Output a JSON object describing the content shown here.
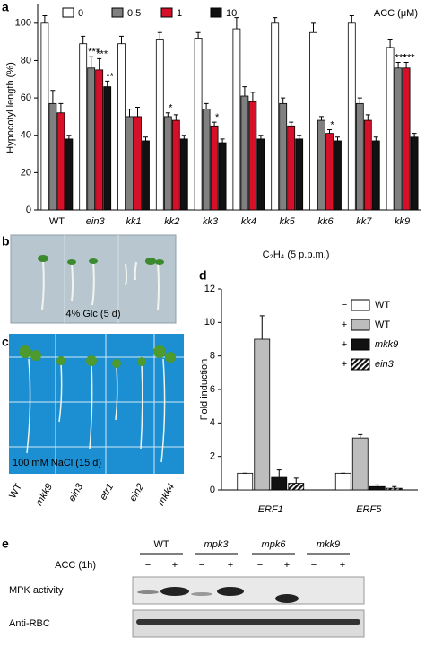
{
  "chart_data": [
    {
      "type": "bar",
      "panel": "a",
      "ylabel": "Hypocotyl length (%)",
      "legend_title": "ACC (μM)",
      "categories": [
        "WT",
        "ein3",
        "kk1",
        "kk2",
        "kk3",
        "kk4",
        "kk5",
        "kk6",
        "kk7",
        "kk9"
      ],
      "series": [
        {
          "name": "0",
          "color": "#ffffff",
          "values": [
            100,
            89,
            89,
            91,
            92,
            97,
            100,
            95,
            100,
            87
          ],
          "errors": [
            4,
            4,
            4,
            4,
            3,
            6,
            3,
            5,
            4,
            4
          ],
          "stars": [
            null,
            null,
            null,
            null,
            null,
            null,
            null,
            null,
            null,
            null
          ]
        },
        {
          "name": "0.5",
          "color": "#808080",
          "values": [
            57,
            76,
            50,
            50,
            54,
            61,
            57,
            48,
            57,
            76
          ],
          "errors": [
            7,
            6,
            4,
            2,
            3,
            5,
            3,
            2,
            3,
            3
          ],
          "stars": [
            null,
            "***",
            null,
            "*",
            null,
            null,
            null,
            null,
            null,
            "***"
          ]
        },
        {
          "name": "1",
          "color": "#d7102a",
          "values": [
            52,
            75,
            50,
            48,
            45,
            58,
            45,
            41,
            48,
            76
          ],
          "errors": [
            5,
            6,
            5,
            3,
            2,
            5,
            2,
            2,
            3,
            3
          ],
          "stars": [
            null,
            "***",
            null,
            null,
            "*",
            null,
            null,
            "*",
            null,
            "***"
          ]
        },
        {
          "name": "10",
          "color": "#111111",
          "values": [
            38,
            66,
            37,
            38,
            36,
            38,
            38,
            37,
            37,
            39
          ],
          "errors": [
            2,
            3,
            2,
            2,
            2,
            2,
            2,
            2,
            2,
            2
          ],
          "stars": [
            null,
            "**",
            null,
            null,
            null,
            null,
            null,
            null,
            null,
            null
          ]
        }
      ],
      "ylim": [
        0,
        110
      ],
      "yticks": [
        0,
        20,
        40,
        60,
        80,
        100
      ],
      "legend": "top"
    },
    {
      "type": "bar",
      "panel": "d",
      "title": "C₂H₄ (5 p.p.m.)",
      "ylabel": "Fold induction",
      "categories": [
        "ERF1",
        "ERF5"
      ],
      "series": [
        {
          "name": "WT",
          "sign": "−",
          "color": "#ffffff",
          "values": [
            1,
            1
          ],
          "errors": [
            0,
            0
          ]
        },
        {
          "name": "WT",
          "sign": "+",
          "color": "#bdbdbd",
          "values": [
            9,
            3.1
          ],
          "errors": [
            1.4,
            0.2
          ]
        },
        {
          "name": "mkk9",
          "sign": "+",
          "color": "#111111",
          "values": [
            0.8,
            0.2
          ],
          "errors": [
            0.4,
            0.1
          ]
        },
        {
          "name": "ein3",
          "sign": "+",
          "color": "#111111",
          "hatch": true,
          "values": [
            0.4,
            0.1
          ],
          "errors": [
            0.3,
            0.1
          ]
        }
      ],
      "ylim": [
        0,
        12
      ],
      "yticks": [
        0,
        2,
        4,
        6,
        8,
        10,
        12
      ],
      "legend": "right"
    }
  ],
  "panel_b": {
    "letter": "b",
    "caption": "4% Glc (5 d)"
  },
  "panel_c": {
    "letter": "c",
    "caption": "100 mM NaCl (15 d)",
    "lanes": [
      "WT",
      "mkk9",
      "ein3",
      "etr1",
      "ein2",
      "mkk4"
    ]
  },
  "panel_e": {
    "letter": "e",
    "groups": [
      "WT",
      "mpk3",
      "mpk6",
      "mkk9"
    ],
    "treatment": "ACC (1h)",
    "signs": [
      "−",
      "+",
      "−",
      "+",
      "−",
      "+",
      "−",
      "+"
    ],
    "rows": [
      "MPK activity",
      "Anti-RBC"
    ]
  }
}
